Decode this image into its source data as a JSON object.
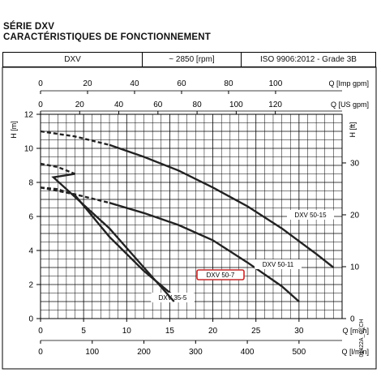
{
  "title_line1": "SÉRIE DXV",
  "title_line2": "CARACTÉRISTIQUES DE FONCTIONNEMENT",
  "header": {
    "model": "DXV",
    "speed": "~ 2850 [rpm]",
    "standard": "ISO 9906:2012 - Grade 3B"
  },
  "side_code": "01422A_C_CH",
  "chart_data": {
    "type": "line",
    "xlabel": "Q [m³/h]",
    "ylabel": "H [m]",
    "y2label": "H [ft]",
    "top_axis1_label": "Q [Imp gpm]",
    "top_axis2_label": "Q [US gpm]",
    "bottom_axis2_label": "Q [l/min]",
    "xlim": [
      0,
      35
    ],
    "ylim": [
      0,
      12
    ],
    "x_ticks": [
      0,
      5,
      10,
      15,
      20,
      25,
      30
    ],
    "y_ticks": [
      0,
      2,
      4,
      6,
      8,
      10,
      12
    ],
    "ft_ticks": [
      0,
      10,
      20,
      30
    ],
    "imp_gpm_ticks": [
      0,
      20,
      40,
      60,
      80,
      100
    ],
    "us_gpm_ticks": [
      0,
      20,
      40,
      60,
      80,
      100,
      120
    ],
    "lmin_ticks": [
      0,
      100,
      200,
      300,
      400,
      500
    ],
    "grid": true,
    "highlight": "DXV 50-7",
    "series": [
      {
        "name": "DXV 35-5",
        "label": "DXV 35-5",
        "dashed": [
          [
            0,
            7.7
          ],
          [
            2,
            7.6
          ],
          [
            4,
            7.25
          ]
        ],
        "solid": [
          [
            4,
            7.25
          ],
          [
            8,
            4.8
          ],
          [
            12,
            2.8
          ],
          [
            16,
            1.1
          ]
        ]
      },
      {
        "name": "DXV 50-7",
        "label": "DXV 50-7",
        "dashed": [
          [
            0,
            9.1
          ],
          [
            2,
            8.9
          ],
          [
            4,
            8.5
          ]
        ],
        "solid": [
          [
            4,
            8.5
          ],
          [
            1.5,
            8.3
          ],
          [
            8,
            5.3
          ],
          [
            12,
            3.0
          ],
          [
            15.5,
            1.0
          ]
        ]
      },
      {
        "name": "DXV 50-11",
        "label": "DXV 50-11",
        "dashed": [
          [
            0,
            7.7
          ],
          [
            4,
            7.3
          ],
          [
            8,
            6.8
          ]
        ],
        "solid": [
          [
            8,
            6.8
          ],
          [
            12,
            6.2
          ],
          [
            16,
            5.5
          ],
          [
            20,
            4.6
          ],
          [
            24,
            3.3
          ],
          [
            28,
            1.9
          ],
          [
            30,
            1.0
          ]
        ]
      },
      {
        "name": "DXV 50-15",
        "label": "DXV 50-15",
        "dashed": [
          [
            0,
            11.0
          ],
          [
            4,
            10.7
          ],
          [
            8,
            10.2
          ]
        ],
        "solid": [
          [
            8,
            10.2
          ],
          [
            12,
            9.5
          ],
          [
            16,
            8.7
          ],
          [
            20,
            7.7
          ],
          [
            24,
            6.6
          ],
          [
            28,
            5.3
          ],
          [
            32,
            3.8
          ],
          [
            34,
            3.0
          ]
        ]
      }
    ]
  }
}
